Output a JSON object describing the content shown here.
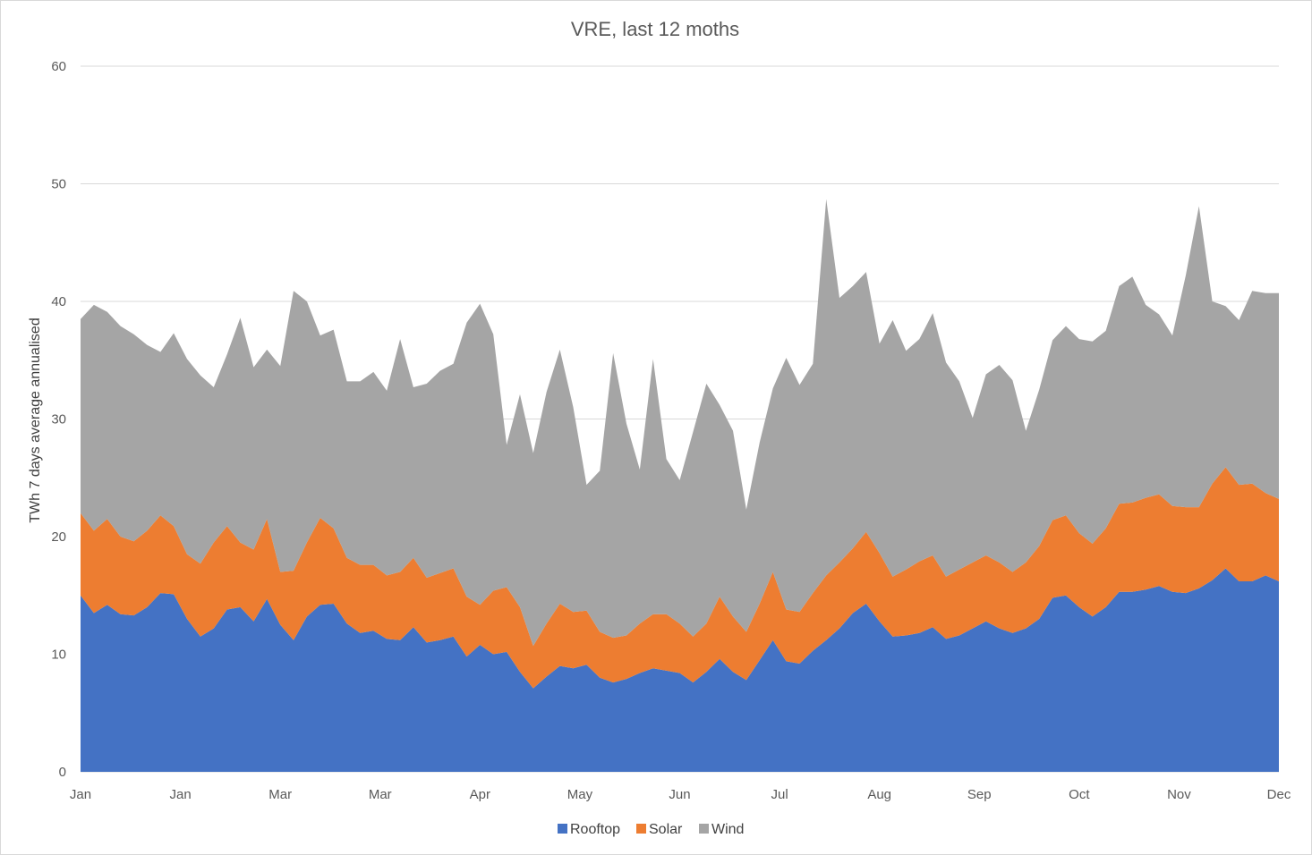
{
  "colors": {
    "Rooftop": "#4472c4",
    "Solar": "#ed7d31",
    "Wind": "#a5a5a5"
  },
  "chart_data": {
    "type": "area",
    "stacked": true,
    "title": "VRE, last 12 moths",
    "ylabel": "TWh 7 days  average annualised",
    "xlabel": "",
    "ylim": [
      0,
      60
    ],
    "yticks": [
      0,
      10,
      20,
      30,
      40,
      50,
      60
    ],
    "xticks": [
      "Jan",
      "Jan",
      "Mar",
      "Mar",
      "Apr",
      "May",
      "Jun",
      "Jul",
      "Aug",
      "Sep",
      "Oct",
      "Nov",
      "Dec"
    ],
    "grid": true,
    "legend": "bottom",
    "x_index": [
      0,
      4,
      8,
      12,
      16,
      20,
      24,
      28,
      32,
      36,
      40,
      44,
      48,
      52,
      56,
      60,
      64,
      68,
      72,
      76,
      80,
      84,
      88,
      92,
      96,
      100,
      104,
      108,
      112,
      116,
      120,
      124,
      128,
      132,
      136,
      140,
      144,
      148,
      152,
      156,
      160,
      164,
      168,
      172,
      176,
      180,
      184,
      188,
      192,
      196,
      200,
      204,
      208,
      212,
      216,
      220,
      224,
      228,
      232,
      236,
      240,
      244,
      248,
      252,
      256,
      260,
      264,
      268,
      272,
      276,
      280,
      284,
      288,
      292,
      296,
      300,
      304,
      308,
      312,
      316,
      320,
      324,
      328,
      332,
      336,
      340,
      344,
      348,
      352,
      356,
      360
    ],
    "series": [
      {
        "name": "Rooftop",
        "values": [
          15,
          13.5,
          14.2,
          13.4,
          13.3,
          14,
          15.2,
          15.1,
          13,
          11.5,
          12.2,
          13.8,
          14,
          12.8,
          14.7,
          12.5,
          11.2,
          13.2,
          14.2,
          14.3,
          12.6,
          11.8,
          12,
          11.3,
          11.2,
          12.3,
          11,
          11.2,
          11.5,
          9.8,
          10.8,
          10,
          10.2,
          8.5,
          7.1,
          8.1,
          9,
          8.8,
          9.1,
          8,
          7.6,
          7.9,
          8.4,
          8.8,
          8.6,
          8.4,
          7.6,
          8.5,
          9.6,
          8.5,
          7.8,
          9.5,
          11.2,
          9.4,
          9.2,
          10.3,
          11.2,
          12.2,
          13.5,
          14.3,
          12.8,
          11.5,
          11.6,
          11.8,
          12.3,
          11.3,
          11.6,
          12.2,
          12.8,
          12.2,
          11.8,
          12.2,
          13,
          14.8,
          15,
          14,
          13.2,
          14,
          15.3,
          15.3,
          15.5,
          15.8,
          15.3,
          15.2,
          15.6,
          16.3,
          17.3,
          16.2,
          16.2,
          16.7,
          16.2
        ]
      },
      {
        "name": "Solar",
        "values": [
          7,
          7,
          7.3,
          6.6,
          6.3,
          6.5,
          6.6,
          5.8,
          5.5,
          6.2,
          7.3,
          7.1,
          5.5,
          6.1,
          6.8,
          4.5,
          5.9,
          6.3,
          7.4,
          6.4,
          5.6,
          5.8,
          5.6,
          5.4,
          5.8,
          5.9,
          5.5,
          5.7,
          5.8,
          5.1,
          3.4,
          5.4,
          5.5,
          5.5,
          3.6,
          4.5,
          5.3,
          4.8,
          4.6,
          3.9,
          3.8,
          3.7,
          4.2,
          4.6,
          4.8,
          4.2,
          3.9,
          4.1,
          5.3,
          4.7,
          4.1,
          4.8,
          5.8,
          4.4,
          4.4,
          4.9,
          5.5,
          5.6,
          5.5,
          6.1,
          5.8,
          5.1,
          5.6,
          6.1,
          6.1,
          5.3,
          5.6,
          5.6,
          5.6,
          5.6,
          5.2,
          5.6,
          6.2,
          6.6,
          6.8,
          6.3,
          6.2,
          6.7,
          7.5,
          7.6,
          7.8,
          7.8,
          7.3,
          7.3,
          6.9,
          8.2,
          8.6,
          8.2,
          8.3,
          7,
          7
        ]
      },
      {
        "name": "Wind",
        "values": [
          16.5,
          19.2,
          17.6,
          17.9,
          17.6,
          15.8,
          13.9,
          16.4,
          16.6,
          16,
          13.2,
          14.6,
          19.1,
          15.5,
          14.4,
          17.5,
          23.8,
          20.5,
          15.5,
          16.9,
          15,
          15.6,
          16.4,
          15.7,
          19.8,
          14.5,
          16.5,
          17.2,
          17.4,
          23.3,
          25.6,
          21.8,
          12.1,
          18.1,
          16.4,
          19.7,
          21.6,
          17.4,
          10.7,
          13.7,
          24.2,
          18,
          13.1,
          21.7,
          13.2,
          12.2,
          17.4,
          20.4,
          16.3,
          15.8,
          10.4,
          13.7,
          15.6,
          21.4,
          19.3,
          19.5,
          32,
          22.5,
          22.3,
          22.1,
          17.8,
          21.8,
          18.6,
          18.9,
          20.6,
          18.2,
          16,
          12.3,
          15.4,
          16.8,
          16.3,
          11.2,
          13.3,
          15.3,
          16.1,
          16.5,
          17.2,
          16.8,
          18.5,
          19.2,
          16.4,
          15.3,
          14.5,
          19.7,
          25.6,
          15.5,
          13.7,
          14,
          16.4,
          17,
          17.5
        ]
      }
    ]
  }
}
